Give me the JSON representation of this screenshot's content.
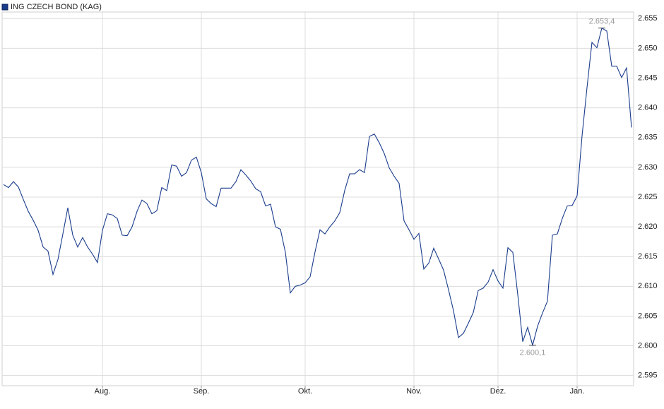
{
  "chart_data": {
    "type": "line",
    "grid": true,
    "ylim": [
      2.5933,
      2.6561
    ],
    "yticks": [
      2.595,
      {
        "value": 2.6,
        "label": "2.600"
      },
      2.605,
      {
        "value": 2.61,
        "label": "2.610"
      },
      2.615,
      {
        "value": 2.62,
        "label": "2.620"
      },
      2.625,
      {
        "value": 2.63,
        "label": "2.630"
      },
      2.635,
      {
        "value": 2.64,
        "label": "2.640"
      },
      2.645,
      {
        "value": 2.65,
        "label": "2.650"
      },
      2.655
    ],
    "categories": [
      null,
      null,
      null,
      null,
      null,
      null,
      null,
      null,
      null,
      null,
      null,
      null,
      null,
      null,
      null,
      null,
      null,
      null,
      null,
      null,
      "Aug.",
      null,
      null,
      null,
      null,
      null,
      null,
      null,
      null,
      null,
      null,
      null,
      null,
      null,
      null,
      null,
      null,
      null,
      null,
      null,
      "Sep.",
      null,
      null,
      null,
      null,
      null,
      null,
      null,
      null,
      null,
      null,
      null,
      null,
      null,
      null,
      null,
      null,
      null,
      null,
      null,
      null,
      "Okt.",
      null,
      null,
      null,
      null,
      null,
      null,
      null,
      null,
      null,
      null,
      null,
      null,
      null,
      null,
      null,
      null,
      null,
      null,
      null,
      null,
      null,
      "Nov.",
      null,
      null,
      null,
      null,
      null,
      null,
      null,
      null,
      null,
      null,
      null,
      null,
      null,
      null,
      null,
      null,
      "Dez.",
      null,
      null,
      null,
      null,
      null,
      null,
      null,
      null,
      null,
      null,
      null,
      null,
      null,
      null,
      null,
      "Jan.",
      null,
      null,
      null,
      null,
      null,
      null,
      null,
      null,
      null,
      null,
      null
    ],
    "series": [
      {
        "name": "ING CZECH BOND (KAG)",
        "color": "#1a3c8c",
        "values": [
          2.6271,
          2.6266,
          2.6276,
          2.6267,
          2.6246,
          2.6226,
          2.6211,
          2.6194,
          2.6166,
          2.6159,
          2.612,
          2.6145,
          2.6188,
          2.6232,
          2.6186,
          2.6166,
          2.6182,
          2.6166,
          2.6154,
          2.614,
          2.6194,
          2.6222,
          2.622,
          2.6214,
          2.6186,
          2.6185,
          2.62,
          2.6226,
          2.6245,
          2.6239,
          2.6222,
          2.6227,
          2.6266,
          2.6261,
          2.6304,
          2.6302,
          2.6285,
          2.6291,
          2.6312,
          2.6317,
          2.6291,
          2.6247,
          2.6239,
          2.6234,
          2.6265,
          2.6265,
          2.6265,
          2.6276,
          2.6296,
          2.6287,
          2.6277,
          2.6264,
          2.6259,
          2.6235,
          2.6238,
          2.62,
          2.6196,
          2.6157,
          2.6089,
          2.61,
          2.6102,
          2.6106,
          2.6116,
          2.6158,
          2.6195,
          2.6188,
          2.62,
          2.621,
          2.6224,
          2.6261,
          2.6289,
          2.6289,
          2.6296,
          2.6291,
          2.6352,
          2.6356,
          2.6341,
          2.6323,
          2.6299,
          2.6285,
          2.6273,
          2.621,
          2.6195,
          2.6179,
          2.6189,
          2.6129,
          2.6139,
          2.6164,
          2.6146,
          2.6127,
          2.6094,
          2.6059,
          2.6014,
          2.6021,
          2.6038,
          2.6056,
          2.6093,
          2.6097,
          2.6107,
          2.6128,
          2.6109,
          2.6097,
          2.6165,
          2.6157,
          2.6086,
          2.6007,
          2.6031,
          2.6001,
          2.6033,
          2.6055,
          2.6075,
          2.6186,
          2.6188,
          2.6214,
          2.6235,
          2.6236,
          2.6252,
          2.6353,
          2.6434,
          2.651,
          2.6501,
          2.6534,
          2.6529,
          2.647,
          2.647,
          2.6451,
          2.6467,
          2.6367
        ],
        "value_labels": [
          null,
          null,
          null,
          null,
          null,
          null,
          null,
          null,
          null,
          null,
          null,
          null,
          null,
          null,
          null,
          null,
          null,
          null,
          null,
          null,
          null,
          null,
          null,
          null,
          null,
          null,
          null,
          null,
          null,
          null,
          null,
          null,
          null,
          null,
          null,
          null,
          null,
          null,
          null,
          null,
          null,
          null,
          null,
          null,
          null,
          null,
          null,
          null,
          null,
          null,
          null,
          null,
          null,
          null,
          null,
          null,
          null,
          null,
          null,
          null,
          null,
          null,
          null,
          null,
          null,
          null,
          null,
          null,
          null,
          null,
          null,
          null,
          null,
          null,
          null,
          null,
          null,
          null,
          null,
          null,
          null,
          null,
          null,
          null,
          null,
          null,
          null,
          null,
          null,
          null,
          null,
          null,
          null,
          null,
          null,
          null,
          null,
          null,
          null,
          null,
          null,
          null,
          null,
          null,
          null,
          null,
          null,
          "2.600,1",
          null,
          null,
          null,
          null,
          null,
          null,
          null,
          null,
          null,
          null,
          null,
          null,
          null,
          "2.653,4",
          null,
          null,
          null,
          null,
          null,
          null
        ]
      }
    ]
  }
}
